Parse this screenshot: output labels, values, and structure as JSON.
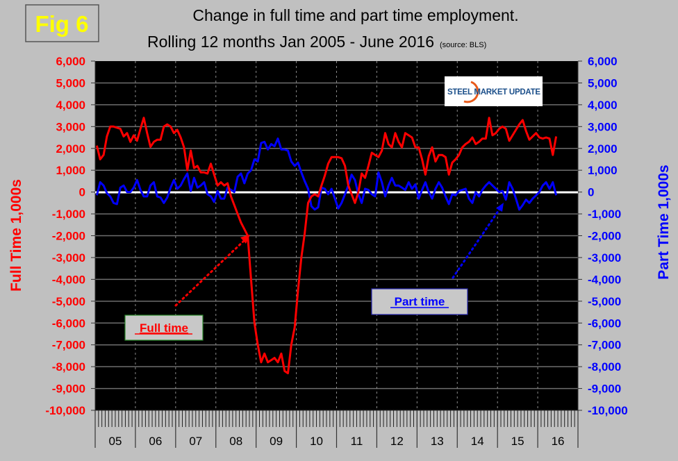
{
  "figure_label": "Fig 6",
  "title_line1": "Change in full time and part time employment.",
  "title_line2": "Rolling 12 months Jan 2005 - June 2016",
  "source_note": "(source: BLS)",
  "logo_text": "STEEL MARKET UPDATE",
  "colors": {
    "full_time": "#ff0000",
    "part_time": "#0000ff",
    "plot_bg": "#000000",
    "page_bg": "#c0c0c0",
    "fig_label": "#ffff00",
    "zero_line": "#ffffff"
  },
  "chart_data": {
    "type": "line",
    "x_start": "2005-01",
    "x_end": "2016-06",
    "x_frequency": "monthly",
    "x_tick_labels": [
      "05",
      "06",
      "07",
      "08",
      "09",
      "10",
      "11",
      "12",
      "13",
      "14",
      "15",
      "16"
    ],
    "ylabel_left": "Full Time 1,000s",
    "ylabel_right": "Part Time 1,000s",
    "ylim": [
      -10000,
      6000
    ],
    "y_ticks": [
      "6,000",
      "5,000",
      "4,000",
      "3,000",
      "2,000",
      "1,000",
      "0",
      "-1,000",
      "-2,000",
      "-3,000",
      "-4,000",
      "-5,000",
      "-6,000",
      "-7,000",
      "-8,000",
      "-9,000",
      "-10,000"
    ],
    "grid": true,
    "annotations": [
      {
        "text": "Full time",
        "series": "Full time"
      },
      {
        "text": "Part time",
        "series": "Part time"
      }
    ],
    "series": [
      {
        "name": "Full time",
        "axis": "left",
        "values": [
          2130,
          1500,
          1700,
          2550,
          3000,
          3000,
          2950,
          2900,
          2550,
          2700,
          2300,
          2600,
          2350,
          2900,
          3400,
          2700,
          2070,
          2300,
          2400,
          2400,
          3000,
          3100,
          3000,
          2700,
          2850,
          2500,
          2050,
          1000,
          1900,
          1100,
          1200,
          900,
          900,
          850,
          1300,
          800,
          300,
          450,
          300,
          400,
          -200,
          -600,
          -1000,
          -1400,
          -1700,
          -2000,
          -4000,
          -6000,
          -7000,
          -7800,
          -7400,
          -7800,
          -7700,
          -7600,
          -7800,
          -7400,
          -8200,
          -8300,
          -7000,
          -6200,
          -4500,
          -3000,
          -1900,
          -500,
          -200,
          -100,
          -200,
          300,
          750,
          1300,
          1600,
          1600,
          1600,
          1550,
          1200,
          300,
          -100,
          -500,
          0,
          850,
          650,
          1200,
          1800,
          1700,
          1600,
          1900,
          2700,
          2200,
          2050,
          2700,
          2300,
          2050,
          2700,
          2600,
          2500,
          2050,
          2050,
          1500,
          800,
          1650,
          2050,
          1400,
          1700,
          1700,
          1600,
          800,
          1350,
          1500,
          1700,
          2050,
          2200,
          2300,
          2500,
          2200,
          2300,
          2450,
          2450,
          3400,
          2600,
          2700,
          2900,
          3000,
          2900,
          2350,
          2600,
          2850,
          3100,
          3300,
          2800,
          2400,
          2550,
          2700,
          2500,
          2450,
          2500,
          2450,
          1700,
          2550
        ]
      },
      {
        "name": "Part time",
        "axis": "right",
        "values": [
          -150,
          450,
          300,
          -50,
          -200,
          -500,
          -550,
          200,
          300,
          0,
          0,
          200,
          550,
          100,
          -200,
          -200,
          300,
          450,
          -200,
          -250,
          -500,
          -250,
          200,
          550,
          150,
          300,
          600,
          850,
          50,
          650,
          200,
          300,
          450,
          -100,
          -200,
          -450,
          50,
          -300,
          -300,
          200,
          100,
          0,
          700,
          850,
          400,
          850,
          1000,
          1500,
          1400,
          2250,
          2300,
          1950,
          2200,
          2100,
          2450,
          1950,
          1950,
          1900,
          1400,
          1200,
          1350,
          900,
          500,
          150,
          -650,
          -800,
          -700,
          200,
          150,
          -100,
          150,
          -300,
          -750,
          -500,
          -100,
          300,
          800,
          550,
          -100,
          -500,
          150,
          100,
          -100,
          -200,
          900,
          450,
          -200,
          300,
          650,
          300,
          300,
          200,
          100,
          450,
          150,
          350,
          -300,
          100,
          450,
          0,
          -300,
          150,
          450,
          200,
          -200,
          -550,
          -100,
          -150,
          50,
          100,
          150,
          -300,
          -500,
          0,
          -200,
          100,
          300,
          450,
          300,
          150,
          0,
          50,
          -350,
          450,
          150,
          -300,
          -800,
          -600,
          -350,
          -500,
          -300,
          -150,
          0,
          300,
          450,
          150,
          450,
          -150
        ]
      }
    ]
  }
}
